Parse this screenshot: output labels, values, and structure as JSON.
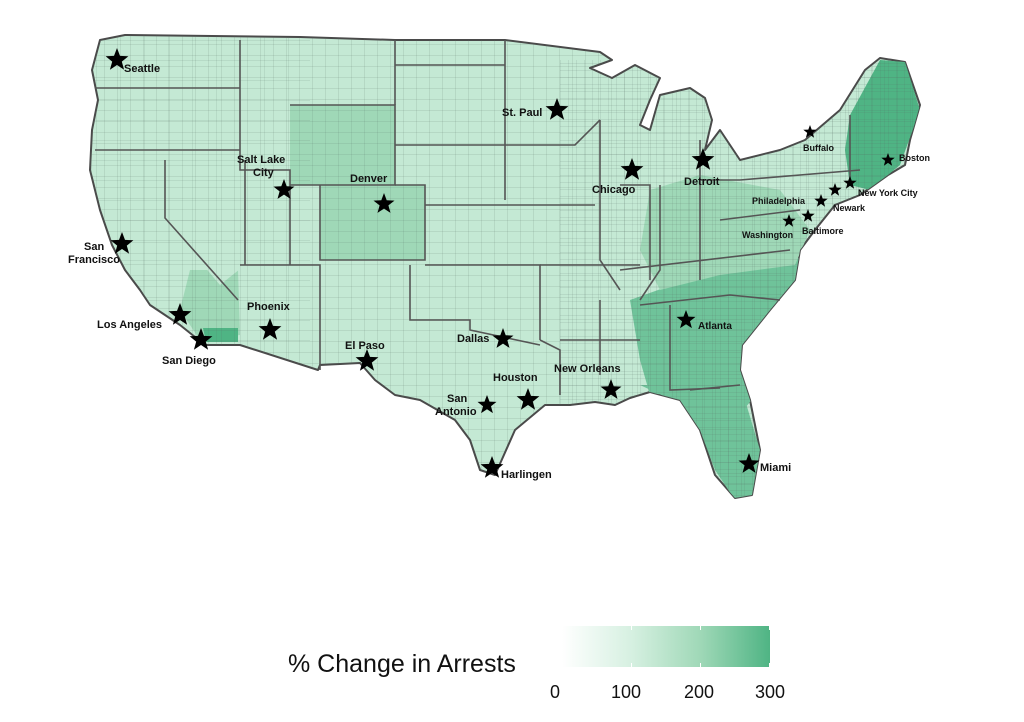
{
  "colors": {
    "low": "#eef8f2",
    "base": "#c4e9d4",
    "medium": "#9fd8b7",
    "high": "#6fc39a",
    "highest": "#4fb484",
    "outline": "#4a4a4a"
  },
  "legend": {
    "title": "% Change in Arrests",
    "ticks": [
      "0",
      "100",
      "200",
      "300"
    ],
    "gradient": [
      "#ffffff",
      "#d6f0e1",
      "#9fd8b7",
      "#4fb484"
    ]
  },
  "cities": [
    {
      "name": "Seattle",
      "icon": "star"
    },
    {
      "name": "St. Paul",
      "icon": "star"
    },
    {
      "name": "Salt Lake City",
      "icon": "star"
    },
    {
      "name": "Denver",
      "icon": "star"
    },
    {
      "name": "Chicago",
      "icon": "star"
    },
    {
      "name": "Detroit",
      "icon": "star"
    },
    {
      "name": "Buffalo",
      "icon": "star"
    },
    {
      "name": "Boston",
      "icon": "star"
    },
    {
      "name": "New York City",
      "icon": "star"
    },
    {
      "name": "Philadelphia",
      "icon": "star"
    },
    {
      "name": "Newark",
      "icon": "star"
    },
    {
      "name": "Washington",
      "icon": "star"
    },
    {
      "name": "Baltimore",
      "icon": "star"
    },
    {
      "name": "San Francisco",
      "icon": "star"
    },
    {
      "name": "Los Angeles",
      "icon": "star"
    },
    {
      "name": "San Diego",
      "icon": "star"
    },
    {
      "name": "Phoenix",
      "icon": "star"
    },
    {
      "name": "El Paso",
      "icon": "star"
    },
    {
      "name": "Dallas",
      "icon": "star"
    },
    {
      "name": "Atlanta",
      "icon": "star"
    },
    {
      "name": "New Orleans",
      "icon": "star"
    },
    {
      "name": "Houston",
      "icon": "star"
    },
    {
      "name": "San Antonio",
      "icon": "star"
    },
    {
      "name": "Harlingen",
      "icon": "star"
    },
    {
      "name": "Miami",
      "icon": "star"
    }
  ]
}
